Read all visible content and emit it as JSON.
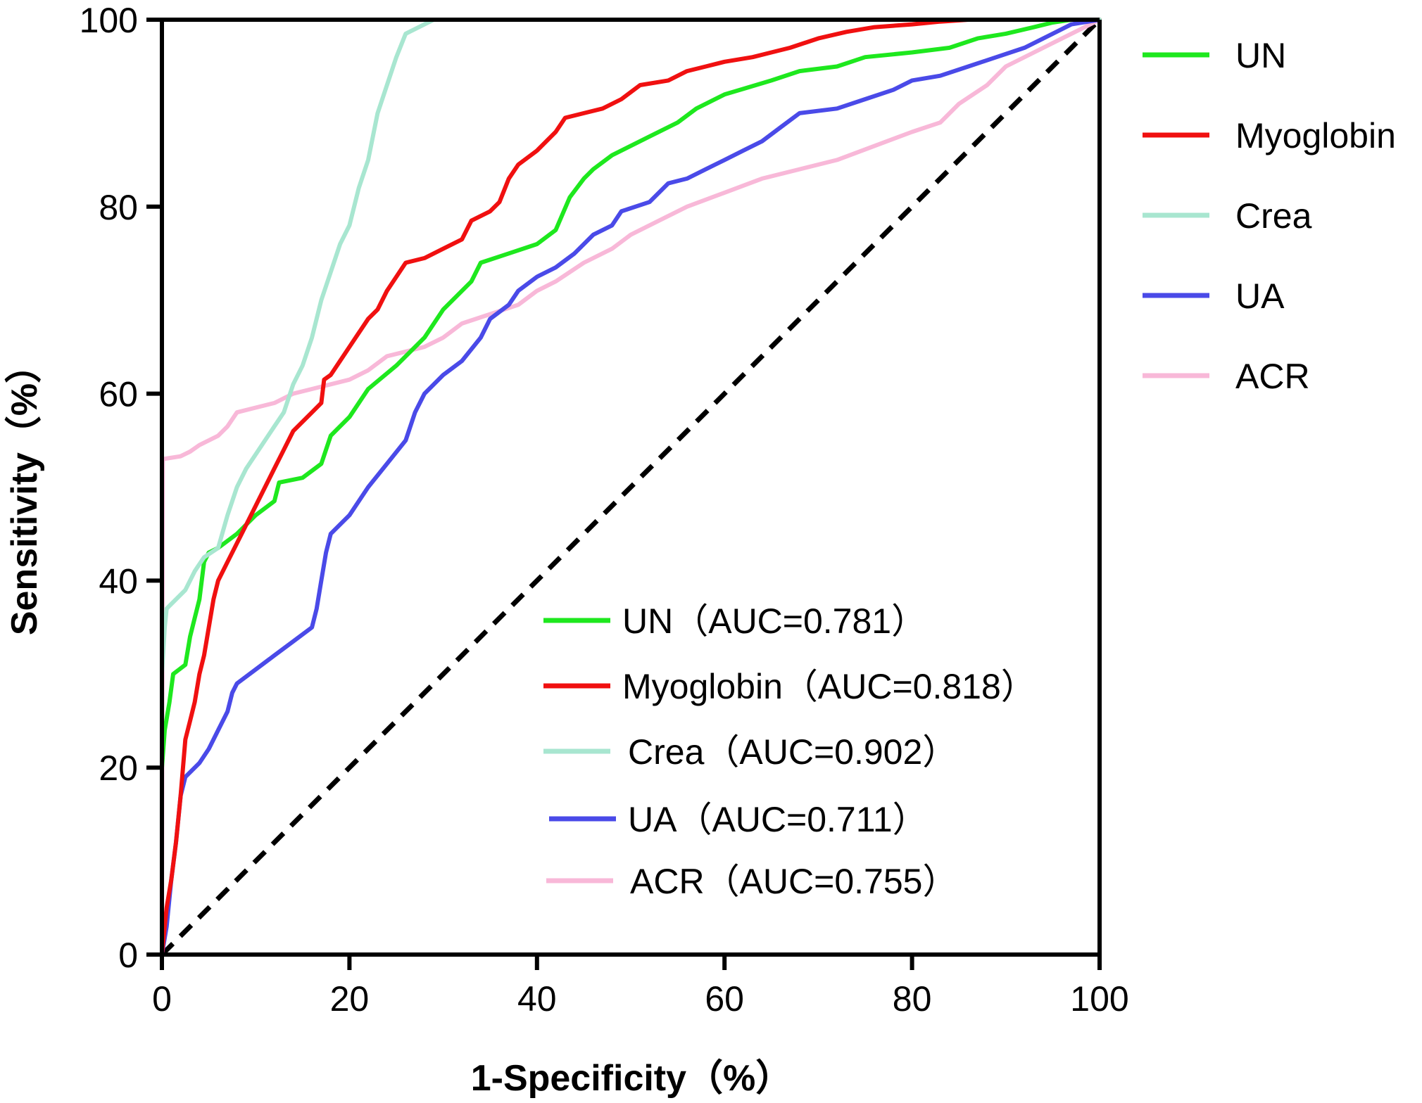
{
  "chart_data": {
    "type": "line",
    "xlabel": "1-Specificity（%）",
    "ylabel": "Sensitivity（%）",
    "xlim": [
      0,
      100
    ],
    "ylim": [
      0,
      100
    ],
    "x_ticks": [
      "0",
      "20",
      "40",
      "60",
      "80",
      "100"
    ],
    "y_ticks": [
      "0",
      "20",
      "40",
      "60",
      "80",
      "100"
    ],
    "grid": false,
    "legend_position": "right",
    "reference_line": {
      "style": "dashed",
      "color": "#000000",
      "points": [
        [
          0,
          0
        ],
        [
          100,
          100
        ]
      ]
    },
    "series": [
      {
        "name": "UN",
        "inset_label": "UN（AUC=0.781）",
        "color": "#1ee81e",
        "points": [
          [
            0,
            20
          ],
          [
            0.3,
            24
          ],
          [
            0.8,
            27
          ],
          [
            1.2,
            30
          ],
          [
            2.5,
            31
          ],
          [
            3,
            34
          ],
          [
            3.5,
            36
          ],
          [
            4,
            38
          ],
          [
            4.5,
            42
          ],
          [
            5,
            43
          ],
          [
            6,
            43.5
          ],
          [
            8,
            45
          ],
          [
            10,
            47
          ],
          [
            12,
            48.5
          ],
          [
            12.5,
            50.5
          ],
          [
            15,
            51
          ],
          [
            17,
            52.5
          ],
          [
            18,
            55.5
          ],
          [
            20,
            57.5
          ],
          [
            22,
            60.5
          ],
          [
            25,
            63
          ],
          [
            28,
            66
          ],
          [
            30,
            69
          ],
          [
            33,
            72
          ],
          [
            34,
            74
          ],
          [
            37,
            75
          ],
          [
            40,
            76
          ],
          [
            42,
            77.5
          ],
          [
            43.5,
            81
          ],
          [
            45,
            83
          ],
          [
            46,
            84
          ],
          [
            48,
            85.5
          ],
          [
            52,
            87.5
          ],
          [
            55,
            89
          ],
          [
            57,
            90.5
          ],
          [
            60,
            92
          ],
          [
            65,
            93.5
          ],
          [
            68,
            94.5
          ],
          [
            72,
            95
          ],
          [
            75,
            96
          ],
          [
            80,
            96.5
          ],
          [
            84,
            97
          ],
          [
            87,
            98
          ],
          [
            90,
            98.5
          ],
          [
            93,
            99.2
          ],
          [
            95,
            99.7
          ],
          [
            97,
            100
          ],
          [
            100,
            100
          ]
        ]
      },
      {
        "name": "Myoglobin",
        "inset_label": "Myoglobin（AUC=0.818）",
        "color": "#f01010",
        "points": [
          [
            0,
            0
          ],
          [
            0.5,
            5
          ],
          [
            1,
            8
          ],
          [
            1.5,
            12
          ],
          [
            2,
            17
          ],
          [
            2.5,
            23
          ],
          [
            3,
            25
          ],
          [
            3.5,
            27
          ],
          [
            4,
            30
          ],
          [
            4.5,
            32
          ],
          [
            5,
            35
          ],
          [
            5.5,
            38
          ],
          [
            6,
            40
          ],
          [
            7,
            42
          ],
          [
            8,
            44
          ],
          [
            9,
            46
          ],
          [
            10,
            48
          ],
          [
            11,
            50
          ],
          [
            12,
            52
          ],
          [
            13,
            54
          ],
          [
            14,
            56
          ],
          [
            15,
            57
          ],
          [
            16,
            58
          ],
          [
            17,
            59
          ],
          [
            17.3,
            61.5
          ],
          [
            18,
            62
          ],
          [
            19,
            63.5
          ],
          [
            20,
            65
          ],
          [
            21,
            66.5
          ],
          [
            22,
            68
          ],
          [
            23,
            69
          ],
          [
            24,
            71
          ],
          [
            25,
            72.5
          ],
          [
            26,
            74
          ],
          [
            28,
            74.5
          ],
          [
            30,
            75.5
          ],
          [
            32,
            76.5
          ],
          [
            33,
            78.5
          ],
          [
            35,
            79.5
          ],
          [
            36,
            80.5
          ],
          [
            37,
            83
          ],
          [
            38,
            84.5
          ],
          [
            40,
            86
          ],
          [
            42,
            88
          ],
          [
            43,
            89.5
          ],
          [
            45,
            90
          ],
          [
            47,
            90.5
          ],
          [
            49,
            91.5
          ],
          [
            51,
            93
          ],
          [
            54,
            93.5
          ],
          [
            56,
            94.5
          ],
          [
            58,
            95
          ],
          [
            60,
            95.5
          ],
          [
            63,
            96
          ],
          [
            65,
            96.5
          ],
          [
            67,
            97
          ],
          [
            70,
            98
          ],
          [
            73,
            98.7
          ],
          [
            76,
            99.2
          ],
          [
            80,
            99.5
          ],
          [
            83,
            99.8
          ],
          [
            86,
            100
          ],
          [
            100,
            100
          ]
        ]
      },
      {
        "name": "Crea",
        "inset_label": "Crea（AUC=0.902）",
        "color": "#a8e6d0",
        "points": [
          [
            0,
            30
          ],
          [
            0.3,
            35
          ],
          [
            0.5,
            37
          ],
          [
            1.5,
            38
          ],
          [
            2.5,
            39
          ],
          [
            3.5,
            41
          ],
          [
            4.5,
            42.5
          ],
          [
            6,
            43.5
          ],
          [
            7,
            47
          ],
          [
            8,
            50
          ],
          [
            9,
            52
          ],
          [
            10,
            53.5
          ],
          [
            11,
            55
          ],
          [
            12,
            56.5
          ],
          [
            13,
            58
          ],
          [
            14,
            61
          ],
          [
            15,
            63
          ],
          [
            16,
            66
          ],
          [
            17,
            70
          ],
          [
            18,
            73
          ],
          [
            19,
            76
          ],
          [
            20,
            78
          ],
          [
            21,
            82
          ],
          [
            22,
            85
          ],
          [
            23,
            90
          ],
          [
            24,
            93
          ],
          [
            25,
            96
          ],
          [
            26,
            98.5
          ],
          [
            28,
            99.5
          ],
          [
            29,
            100
          ],
          [
            100,
            100
          ]
        ]
      },
      {
        "name": "UA",
        "inset_label": "UA（AUC=0.711）",
        "color": "#4a4ae8",
        "points": [
          [
            0,
            0
          ],
          [
            0.5,
            3
          ],
          [
            1,
            8
          ],
          [
            1.5,
            12
          ],
          [
            2,
            17
          ],
          [
            2.5,
            19
          ],
          [
            4,
            20.5
          ],
          [
            5,
            22
          ],
          [
            6,
            24
          ],
          [
            7,
            26
          ],
          [
            7.5,
            28
          ],
          [
            8,
            29
          ],
          [
            10,
            30.5
          ],
          [
            12,
            32
          ],
          [
            14,
            33.5
          ],
          [
            16,
            35
          ],
          [
            16.5,
            37
          ],
          [
            17,
            40
          ],
          [
            17.5,
            43
          ],
          [
            18,
            45
          ],
          [
            20,
            47
          ],
          [
            22,
            50
          ],
          [
            24,
            52.5
          ],
          [
            26,
            55
          ],
          [
            27,
            58
          ],
          [
            28,
            60
          ],
          [
            30,
            62
          ],
          [
            32,
            63.5
          ],
          [
            34,
            66
          ],
          [
            35,
            68
          ],
          [
            37,
            69.5
          ],
          [
            38,
            71
          ],
          [
            40,
            72.5
          ],
          [
            42,
            73.5
          ],
          [
            44,
            75
          ],
          [
            46,
            77
          ],
          [
            48,
            78
          ],
          [
            49,
            79.5
          ],
          [
            52,
            80.5
          ],
          [
            54,
            82.5
          ],
          [
            56,
            83
          ],
          [
            58,
            84
          ],
          [
            60,
            85
          ],
          [
            62,
            86
          ],
          [
            64,
            87
          ],
          [
            66,
            88.5
          ],
          [
            68,
            90
          ],
          [
            72,
            90.5
          ],
          [
            75,
            91.5
          ],
          [
            78,
            92.5
          ],
          [
            80,
            93.5
          ],
          [
            83,
            94
          ],
          [
            86,
            95
          ],
          [
            89,
            96
          ],
          [
            92,
            97
          ],
          [
            95,
            98.5
          ],
          [
            97,
            99.5
          ],
          [
            100,
            100
          ]
        ]
      },
      {
        "name": "ACR",
        "inset_label": "ACR（AUC=0.755）",
        "color": "#f8b8d8",
        "points": [
          [
            0,
            0
          ],
          [
            0.1,
            53
          ],
          [
            2,
            53.3
          ],
          [
            3,
            53.8
          ],
          [
            4,
            54.5
          ],
          [
            6,
            55.5
          ],
          [
            7,
            56.5
          ],
          [
            8,
            58
          ],
          [
            10,
            58.5
          ],
          [
            12,
            59
          ],
          [
            14,
            60
          ],
          [
            16,
            60.5
          ],
          [
            18,
            61
          ],
          [
            20,
            61.5
          ],
          [
            22,
            62.5
          ],
          [
            24,
            64
          ],
          [
            26,
            64.5
          ],
          [
            28,
            65
          ],
          [
            30,
            66
          ],
          [
            32,
            67.5
          ],
          [
            35,
            68.5
          ],
          [
            38,
            69.5
          ],
          [
            40,
            71
          ],
          [
            42,
            72
          ],
          [
            45,
            74
          ],
          [
            48,
            75.5
          ],
          [
            50,
            77
          ],
          [
            53,
            78.5
          ],
          [
            56,
            80
          ],
          [
            60,
            81.5
          ],
          [
            64,
            83
          ],
          [
            68,
            84
          ],
          [
            72,
            85
          ],
          [
            76,
            86.5
          ],
          [
            80,
            88
          ],
          [
            83,
            89
          ],
          [
            85,
            91
          ],
          [
            88,
            93
          ],
          [
            90,
            95
          ],
          [
            93,
            96.5
          ],
          [
            96,
            98
          ],
          [
            100,
            100
          ]
        ]
      }
    ]
  }
}
